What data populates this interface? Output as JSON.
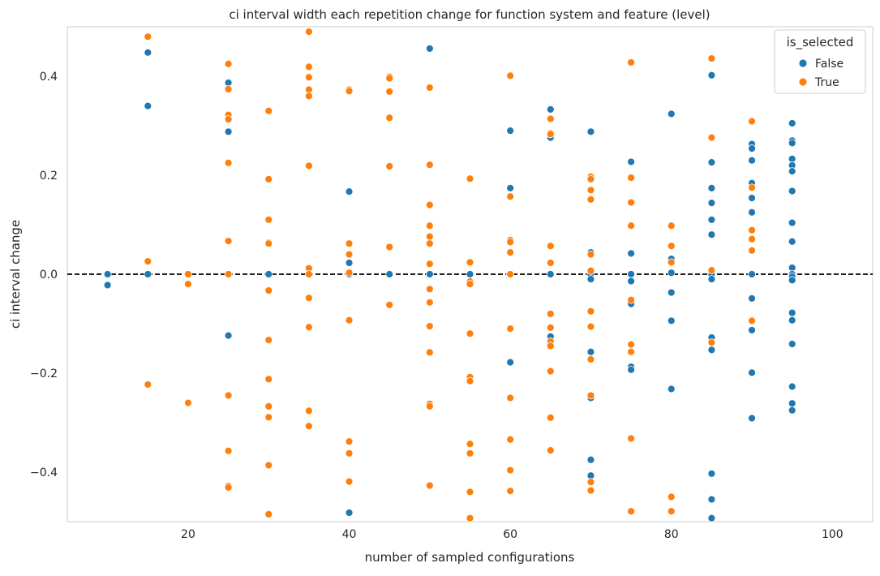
{
  "chart_data": {
    "type": "scatter",
    "title": "ci interval width each repetition change for function system and feature (level)",
    "xlabel": "number of sampled configurations",
    "ylabel": "ci interval change",
    "xlim": [
      5,
      105
    ],
    "ylim": [
      -0.5,
      0.5
    ],
    "xticks": [
      20,
      40,
      60,
      80,
      100
    ],
    "yticks": [
      -0.4,
      -0.2,
      0.0,
      0.2,
      0.4
    ],
    "xtick_labels": [
      "20",
      "40",
      "60",
      "80",
      "100"
    ],
    "ytick_labels": [
      "−0.4",
      "−0.2",
      "0.0",
      "0.2",
      "0.4"
    ],
    "grid": false,
    "reference_line": {
      "y": 0.0,
      "style": "dashed",
      "color": "#000000"
    },
    "legend": {
      "title": "is_selected",
      "position": "top-right",
      "entries": [
        {
          "label": "False",
          "color": "#1f77b4"
        },
        {
          "label": "True",
          "color": "#ff7f0e"
        }
      ]
    },
    "series": [
      {
        "name": "False",
        "color": "#1f77b4",
        "points": [
          [
            10,
            0.0
          ],
          [
            10,
            -0.022
          ],
          [
            15,
            0.448
          ],
          [
            15,
            0.34
          ],
          [
            15,
            0.0
          ],
          [
            25,
            0.387
          ],
          [
            25,
            0.288
          ],
          [
            25,
            -0.124
          ],
          [
            30,
            0.0
          ],
          [
            40,
            0.167
          ],
          [
            40,
            0.023
          ],
          [
            40,
            0.0
          ],
          [
            40,
            -0.482
          ],
          [
            45,
            0.0
          ],
          [
            50,
            0.456
          ],
          [
            50,
            0.0
          ],
          [
            55,
            0.0
          ],
          [
            60,
            0.29
          ],
          [
            60,
            0.174
          ],
          [
            60,
            0.0
          ],
          [
            60,
            -0.178
          ],
          [
            65,
            0.333
          ],
          [
            65,
            0.276
          ],
          [
            65,
            0.0
          ],
          [
            65,
            -0.126
          ],
          [
            70,
            0.288
          ],
          [
            70,
            0.044
          ],
          [
            70,
            0.0
          ],
          [
            70,
            -0.01
          ],
          [
            70,
            -0.157
          ],
          [
            70,
            -0.25
          ],
          [
            70,
            -0.375
          ],
          [
            70,
            -0.407
          ],
          [
            75,
            0.227
          ],
          [
            75,
            0.042
          ],
          [
            75,
            0.0
          ],
          [
            75,
            -0.014
          ],
          [
            75,
            -0.06
          ],
          [
            75,
            -0.187
          ],
          [
            75,
            -0.193
          ],
          [
            80,
            0.324
          ],
          [
            80,
            0.031
          ],
          [
            80,
            0.003
          ],
          [
            80,
            -0.037
          ],
          [
            80,
            -0.094
          ],
          [
            80,
            -0.232
          ],
          [
            85,
            0.402
          ],
          [
            85,
            0.226
          ],
          [
            85,
            0.174
          ],
          [
            85,
            0.144
          ],
          [
            85,
            0.11
          ],
          [
            85,
            0.08
          ],
          [
            85,
            0.0
          ],
          [
            85,
            -0.01
          ],
          [
            85,
            -0.128
          ],
          [
            85,
            -0.153
          ],
          [
            85,
            -0.403
          ],
          [
            85,
            -0.455
          ],
          [
            85,
            -0.493
          ],
          [
            90,
            0.263
          ],
          [
            90,
            0.254
          ],
          [
            90,
            0.23
          ],
          [
            90,
            0.184
          ],
          [
            90,
            0.154
          ],
          [
            90,
            0.125
          ],
          [
            90,
            0.0
          ],
          [
            90,
            -0.049
          ],
          [
            90,
            -0.113
          ],
          [
            90,
            -0.199
          ],
          [
            90,
            -0.291
          ],
          [
            95,
            0.305
          ],
          [
            95,
            0.27
          ],
          [
            95,
            0.265
          ],
          [
            95,
            0.233
          ],
          [
            95,
            0.22
          ],
          [
            95,
            0.208
          ],
          [
            95,
            0.168
          ],
          [
            95,
            0.104
          ],
          [
            95,
            0.066
          ],
          [
            95,
            0.013
          ],
          [
            95,
            0.0
          ],
          [
            95,
            -0.005
          ],
          [
            95,
            -0.012
          ],
          [
            95,
            -0.078
          ],
          [
            95,
            -0.093
          ],
          [
            95,
            -0.141
          ],
          [
            95,
            -0.227
          ],
          [
            95,
            -0.261
          ],
          [
            95,
            -0.275
          ]
        ]
      },
      {
        "name": "True",
        "color": "#ff7f0e",
        "points": [
          [
            15,
            0.48
          ],
          [
            15,
            0.026
          ],
          [
            15,
            -0.223
          ],
          [
            20,
            0.0
          ],
          [
            20,
            -0.02
          ],
          [
            20,
            -0.26
          ],
          [
            25,
            0.425
          ],
          [
            25,
            0.374
          ],
          [
            25,
            0.322
          ],
          [
            25,
            0.313
          ],
          [
            25,
            0.225
          ],
          [
            25,
            0.067
          ],
          [
            25,
            0.0
          ],
          [
            25,
            -0.245
          ],
          [
            25,
            -0.357
          ],
          [
            25,
            -0.428
          ],
          [
            25,
            -0.431
          ],
          [
            30,
            0.33
          ],
          [
            30,
            0.192
          ],
          [
            30,
            0.11
          ],
          [
            30,
            0.064
          ],
          [
            30,
            0.062
          ],
          [
            30,
            -0.033
          ],
          [
            30,
            -0.133
          ],
          [
            30,
            -0.212
          ],
          [
            30,
            -0.267
          ],
          [
            30,
            -0.289
          ],
          [
            30,
            -0.386
          ],
          [
            30,
            -0.485
          ],
          [
            35,
            0.49
          ],
          [
            35,
            0.419
          ],
          [
            35,
            0.398
          ],
          [
            35,
            0.373
          ],
          [
            35,
            0.36
          ],
          [
            35,
            0.219
          ],
          [
            35,
            0.012
          ],
          [
            35,
            0.0
          ],
          [
            35,
            -0.048
          ],
          [
            35,
            -0.107
          ],
          [
            35,
            -0.276
          ],
          [
            35,
            -0.307
          ],
          [
            40,
            0.373
          ],
          [
            40,
            0.37
          ],
          [
            40,
            0.062
          ],
          [
            40,
            0.04
          ],
          [
            40,
            0.003
          ],
          [
            40,
            -0.093
          ],
          [
            40,
            -0.338
          ],
          [
            40,
            -0.362
          ],
          [
            40,
            -0.419
          ],
          [
            45,
            0.399
          ],
          [
            45,
            0.396
          ],
          [
            45,
            0.369
          ],
          [
            45,
            0.316
          ],
          [
            45,
            0.218
          ],
          [
            45,
            0.055
          ],
          [
            45,
            -0.062
          ],
          [
            50,
            0.377
          ],
          [
            50,
            0.221
          ],
          [
            50,
            0.14
          ],
          [
            50,
            0.098
          ],
          [
            50,
            0.076
          ],
          [
            50,
            0.062
          ],
          [
            50,
            0.021
          ],
          [
            50,
            -0.03
          ],
          [
            50,
            -0.057
          ],
          [
            50,
            -0.105
          ],
          [
            50,
            -0.158
          ],
          [
            50,
            -0.262
          ],
          [
            50,
            -0.267
          ],
          [
            50,
            -0.427
          ],
          [
            55,
            0.193
          ],
          [
            55,
            0.024
          ],
          [
            55,
            -0.015
          ],
          [
            55,
            -0.02
          ],
          [
            55,
            -0.12
          ],
          [
            55,
            -0.208
          ],
          [
            55,
            -0.216
          ],
          [
            55,
            -0.343
          ],
          [
            55,
            -0.362
          ],
          [
            55,
            -0.44
          ],
          [
            55,
            -0.493
          ],
          [
            60,
            0.401
          ],
          [
            60,
            0.157
          ],
          [
            60,
            0.069
          ],
          [
            60,
            0.065
          ],
          [
            60,
            0.044
          ],
          [
            60,
            0.0
          ],
          [
            60,
            -0.11
          ],
          [
            60,
            -0.25
          ],
          [
            60,
            -0.334
          ],
          [
            60,
            -0.396
          ],
          [
            60,
            -0.438
          ],
          [
            65,
            0.314
          ],
          [
            65,
            0.285
          ],
          [
            65,
            0.283
          ],
          [
            65,
            0.057
          ],
          [
            65,
            0.023
          ],
          [
            65,
            -0.08
          ],
          [
            65,
            -0.108
          ],
          [
            65,
            -0.136
          ],
          [
            65,
            -0.145
          ],
          [
            65,
            -0.196
          ],
          [
            65,
            -0.29
          ],
          [
            65,
            -0.356
          ],
          [
            70,
            0.197
          ],
          [
            70,
            0.192
          ],
          [
            70,
            0.17
          ],
          [
            70,
            0.151
          ],
          [
            70,
            0.04
          ],
          [
            70,
            0.007
          ],
          [
            70,
            -0.075
          ],
          [
            70,
            -0.106
          ],
          [
            70,
            -0.172
          ],
          [
            70,
            -0.245
          ],
          [
            70,
            -0.42
          ],
          [
            70,
            -0.437
          ],
          [
            75,
            0.428
          ],
          [
            75,
            0.195
          ],
          [
            75,
            0.145
          ],
          [
            75,
            0.098
          ],
          [
            75,
            -0.052
          ],
          [
            75,
            -0.142
          ],
          [
            75,
            -0.157
          ],
          [
            75,
            -0.332
          ],
          [
            75,
            -0.479
          ],
          [
            80,
            0.098
          ],
          [
            80,
            0.057
          ],
          [
            80,
            0.024
          ],
          [
            80,
            -0.45
          ],
          [
            80,
            -0.479
          ],
          [
            85,
            0.436
          ],
          [
            85,
            0.276
          ],
          [
            85,
            0.008
          ],
          [
            85,
            -0.138
          ],
          [
            90,
            0.309
          ],
          [
            90,
            0.175
          ],
          [
            90,
            0.089
          ],
          [
            90,
            0.071
          ],
          [
            90,
            0.048
          ],
          [
            90,
            -0.094
          ]
        ]
      }
    ]
  }
}
